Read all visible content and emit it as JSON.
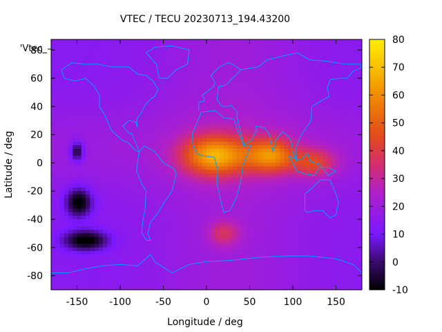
{
  "chart_data": {
    "type": "heatmap",
    "title": "VTEC / TECU 20230713_194.43200",
    "xlabel": "Longitude / deg",
    "ylabel": "Latitude / deg",
    "legend_label": "'Vtec_",
    "xlim": [
      -180,
      180
    ],
    "ylim": [
      -90,
      87.5
    ],
    "x_ticks": [
      -150,
      -100,
      -50,
      0,
      50,
      100,
      150
    ],
    "y_ticks": [
      -80,
      -60,
      -40,
      -20,
      0,
      20,
      40,
      60,
      80
    ],
    "colorbar": {
      "label": "",
      "range": [
        -10,
        80
      ],
      "ticks": [
        -10,
        0,
        10,
        20,
        30,
        40,
        50,
        60,
        70,
        80
      ],
      "stops": [
        {
          "value": -10,
          "color": "#000000"
        },
        {
          "value": 0,
          "color": "#3a0a6e"
        },
        {
          "value": 10,
          "color": "#7a18ff"
        },
        {
          "value": 25,
          "color": "#b020c8"
        },
        {
          "value": 35,
          "color": "#d42e6e"
        },
        {
          "value": 45,
          "color": "#e24a1e"
        },
        {
          "value": 60,
          "color": "#f08c00"
        },
        {
          "value": 70,
          "color": "#f8c000"
        },
        {
          "value": 80,
          "color": "#ffee00"
        }
      ]
    },
    "coastline_color": "#00a0ff",
    "grid": false,
    "field_features": [
      {
        "lon": 10,
        "lat": 5,
        "value": 62,
        "width_lon": 38,
        "width_lat": 14
      },
      {
        "lon": 75,
        "lat": 5,
        "value": 55,
        "width_lon": 28,
        "width_lat": 12
      },
      {
        "lon": 125,
        "lat": 0,
        "value": 42,
        "width_lon": 25,
        "width_lat": 10
      },
      {
        "lon": 20,
        "lat": -50,
        "value": 35,
        "width_lon": 18,
        "width_lat": 9
      },
      {
        "lon": -148,
        "lat": -28,
        "value": -9,
        "width_lon": 15,
        "width_lat": 10
      },
      {
        "lon": -140,
        "lat": -55,
        "value": -9,
        "width_lon": 25,
        "width_lat": 7
      },
      {
        "lon": -150,
        "lat": 8,
        "value": -5,
        "width_lon": 8,
        "width_lat": 7
      }
    ]
  }
}
